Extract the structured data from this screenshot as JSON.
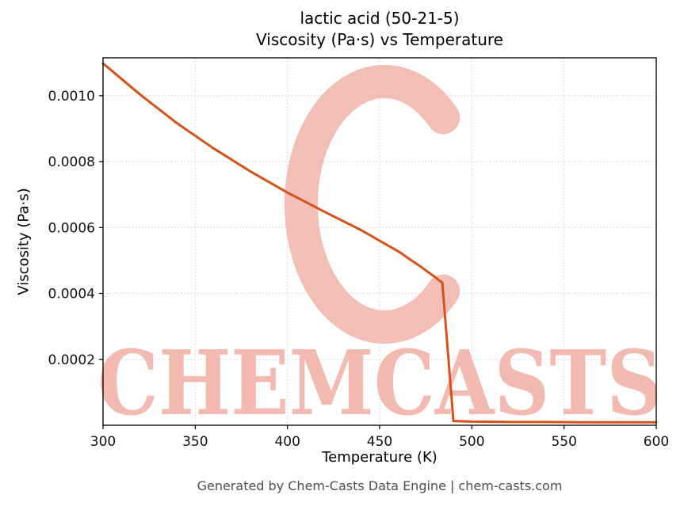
{
  "title": {
    "line1": "lactic acid (50-21-5)",
    "line2": "Viscosity (Pa·s) vs Temperature"
  },
  "footer": "Generated by Chem-Casts Data Engine | chem-casts.com",
  "watermark": {
    "text": "CHEMCASTS",
    "logo": "c-ring-brush-mark",
    "color": "#f1b3a9"
  },
  "chart_data": {
    "type": "line",
    "title": "lactic acid (50-21-5) — Viscosity (Pa·s) vs Temperature",
    "xlabel": "Temperature (K)",
    "ylabel": "Viscosity (Pa·s)",
    "xlim": [
      300,
      600
    ],
    "ylim": [
      0,
      0.001115
    ],
    "x_ticks": [
      300,
      350,
      400,
      450,
      500,
      550,
      600
    ],
    "y_ticks": [
      0.0002,
      0.0004,
      0.0006,
      0.0008,
      0.001
    ],
    "grid": true,
    "legend": false,
    "line_color": "#d5521b",
    "series": [
      {
        "name": "viscosity",
        "x": [
          300,
          320,
          340,
          360,
          380,
          400,
          420,
          440,
          460,
          470,
          480,
          484,
          490,
          500,
          520,
          540,
          560,
          580,
          600
        ],
        "y": [
          0.001098,
          0.001004,
          0.000917,
          0.00084,
          0.00077,
          0.000706,
          0.000648,
          0.000592,
          0.000528,
          0.00049,
          0.00045,
          0.000432,
          1.3e-05,
          1.1e-05,
          1e-05,
          1e-05,
          9e-06,
          9e-06,
          9e-06
        ]
      }
    ]
  }
}
